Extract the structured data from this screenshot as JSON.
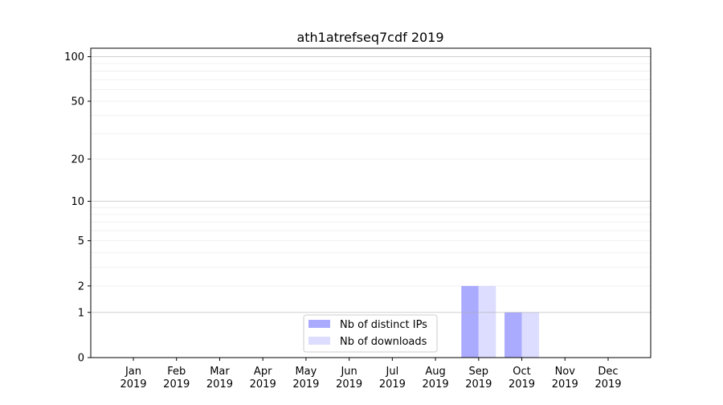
{
  "chart_data": {
    "type": "bar",
    "title": "ath1atrefseq7cdf 2019",
    "xlabel": "",
    "ylabel": "",
    "yscale": "log(1+y)",
    "ylim": [
      0,
      114
    ],
    "yticks": [
      0,
      1,
      2,
      5,
      10,
      20,
      50,
      100
    ],
    "grid": true,
    "legend_position": "lower-center",
    "categories": [
      "Jan\n2019",
      "Feb\n2019",
      "Mar\n2019",
      "Apr\n2019",
      "May\n2019",
      "Jun\n2019",
      "Jul\n2019",
      "Aug\n2019",
      "Sep\n2019",
      "Oct\n2019",
      "Nov\n2019",
      "Dec\n2019"
    ],
    "series": [
      {
        "name": "Nb of distinct IPs",
        "color": "#aaaaff",
        "values": [
          0,
          0,
          0,
          0,
          0,
          0,
          0,
          0,
          2,
          1,
          0,
          0
        ]
      },
      {
        "name": "Nb of downloads",
        "color": "#ddddff",
        "values": [
          0,
          0,
          0,
          0,
          0,
          0,
          0,
          0,
          2,
          1,
          0,
          0
        ]
      }
    ]
  }
}
